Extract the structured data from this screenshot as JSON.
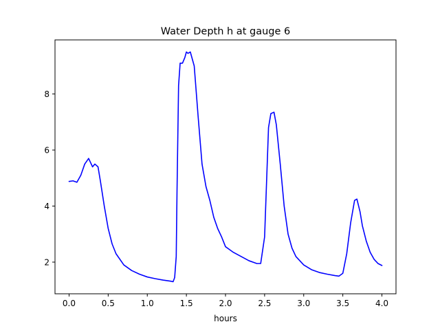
{
  "chart_data": {
    "type": "line",
    "title": "Water Depth h at gauge 6",
    "xlabel": "hours",
    "ylabel": "",
    "xlim": [
      -0.18,
      4.18
    ],
    "ylim": [
      0.87,
      9.93
    ],
    "xticks": [
      0.0,
      0.5,
      1.0,
      1.5,
      2.0,
      2.5,
      3.0,
      3.5,
      4.0
    ],
    "xtick_labels": [
      "0.0",
      "0.5",
      "1.0",
      "1.5",
      "2.0",
      "2.5",
      "3.0",
      "3.5",
      "4.0"
    ],
    "yticks": [
      2,
      4,
      6,
      8
    ],
    "ytick_labels": [
      "2",
      "4",
      "6",
      "8"
    ],
    "grid": false,
    "series": [
      {
        "color": "#0000ff",
        "x": [
          0.0,
          0.05,
          0.1,
          0.15,
          0.2,
          0.25,
          0.3,
          0.33,
          0.37,
          0.4,
          0.45,
          0.5,
          0.55,
          0.6,
          0.7,
          0.8,
          0.9,
          1.0,
          1.1,
          1.2,
          1.3,
          1.33,
          1.35,
          1.37,
          1.38,
          1.4,
          1.42,
          1.45,
          1.48,
          1.5,
          1.52,
          1.55,
          1.6,
          1.65,
          1.7,
          1.75,
          1.8,
          1.85,
          1.9,
          1.95,
          2.0,
          2.05,
          2.1,
          2.2,
          2.3,
          2.4,
          2.45,
          2.5,
          2.55,
          2.58,
          2.62,
          2.65,
          2.7,
          2.75,
          2.8,
          2.85,
          2.9,
          3.0,
          3.1,
          3.2,
          3.3,
          3.4,
          3.45,
          3.5,
          3.55,
          3.6,
          3.65,
          3.68,
          3.72,
          3.75,
          3.8,
          3.85,
          3.9,
          3.95,
          4.0
        ],
        "y": [
          4.88,
          4.9,
          4.85,
          5.1,
          5.5,
          5.7,
          5.4,
          5.5,
          5.4,
          4.9,
          4.0,
          3.2,
          2.65,
          2.3,
          1.9,
          1.7,
          1.57,
          1.47,
          1.41,
          1.36,
          1.32,
          1.3,
          1.45,
          2.2,
          4.5,
          8.3,
          9.1,
          9.1,
          9.3,
          9.5,
          9.45,
          9.5,
          9.0,
          7.2,
          5.5,
          4.7,
          4.2,
          3.6,
          3.2,
          2.9,
          2.55,
          2.45,
          2.35,
          2.2,
          2.05,
          1.95,
          1.95,
          2.9,
          6.8,
          7.3,
          7.35,
          6.9,
          5.5,
          4.0,
          3.0,
          2.5,
          2.2,
          1.9,
          1.73,
          1.63,
          1.57,
          1.52,
          1.5,
          1.6,
          2.3,
          3.4,
          4.2,
          4.25,
          3.8,
          3.3,
          2.75,
          2.35,
          2.1,
          1.95,
          1.88
        ]
      }
    ]
  }
}
